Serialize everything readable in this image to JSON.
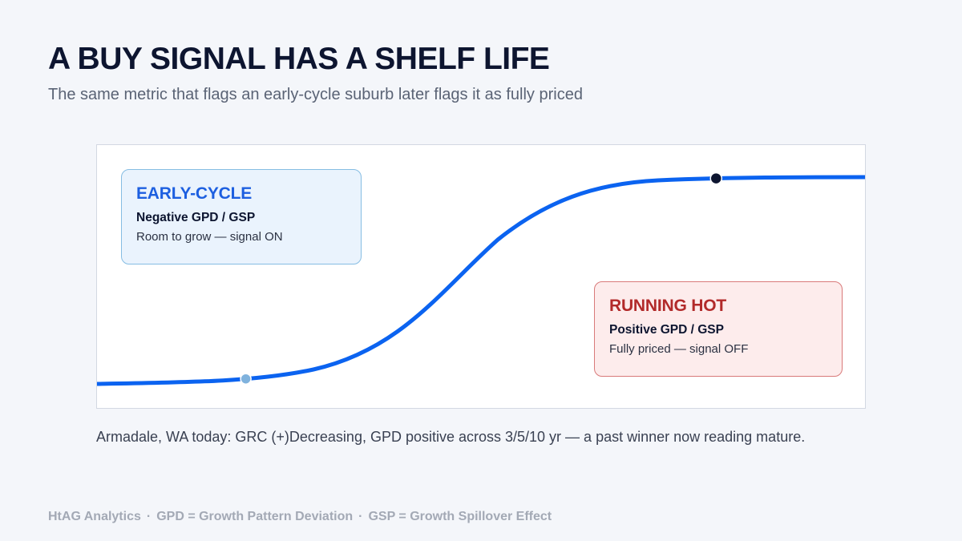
{
  "header": {
    "title": "A BUY SIGNAL HAS A SHELF LIFE",
    "subtitle": "The same metric that flags an early-cycle suburb later flags it as fully priced"
  },
  "diagram": {
    "curve_type": "s-curve",
    "curve_color": "#0b63f0",
    "markers": [
      {
        "name": "early-marker",
        "position_along_curve": 0.18,
        "color": "#7fb2dd"
      },
      {
        "name": "late-marker",
        "position_along_curve": 0.82,
        "color": "#0d1530"
      }
    ],
    "callouts": {
      "early": {
        "heading": "EARLY-CYCLE",
        "metric": "Negative GPD / GSP",
        "note": "Room to grow — signal ON",
        "color": "#1d5fe0"
      },
      "hot": {
        "heading": "RUNNING HOT",
        "metric": "Positive GPD / GSP",
        "note": "Fully priced — signal OFF",
        "color": "#b22a2a"
      }
    }
  },
  "caption": "Armadale, WA today: GRC (+)Decreasing, GPD positive across 3/5/10 yr — a past winner now reading mature.",
  "footer": {
    "items": [
      "HtAG Analytics",
      "GPD = Growth Pattern Deviation",
      "GSP = Growth Spillover Effect"
    ],
    "separator": "·"
  }
}
